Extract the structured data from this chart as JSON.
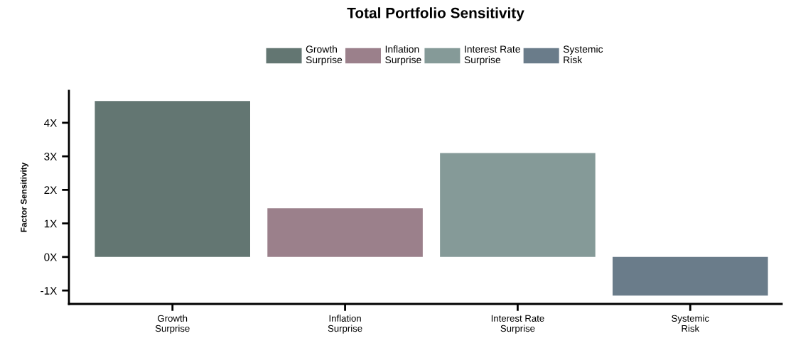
{
  "chart_data": {
    "type": "bar",
    "title": "Total Portfolio Sensitivity",
    "ylabel": "Factor Sensitivity",
    "categories": [
      "Growth\nSurprise",
      "Inflation\nSurprise",
      "Interest Rate\nSurprise",
      "Systemic\nRisk"
    ],
    "stacked": true,
    "series": [
      {
        "name": "Growth\nSurprise",
        "color": "#637672",
        "values": [
          4.65,
          null,
          null,
          null
        ]
      },
      {
        "name": "Inflation\nSurprise",
        "color": "#9b808b",
        "values": [
          null,
          1.45,
          null,
          null
        ]
      },
      {
        "name": "Interest Rate\nSurprise",
        "color": "#859a98",
        "values": [
          null,
          null,
          3.1,
          null
        ]
      },
      {
        "name": "Systemic\nRisk",
        "color": "#6a7c8a",
        "values": [
          null,
          null,
          null,
          -1.15
        ]
      }
    ],
    "ylim": [
      -1.4,
      4.95
    ],
    "yticks": [
      {
        "value": -1,
        "label": "-1X"
      },
      {
        "value": 0,
        "label": "0X"
      },
      {
        "value": 1,
        "label": "1X"
      },
      {
        "value": 2,
        "label": "2X"
      },
      {
        "value": 3,
        "label": "3X"
      },
      {
        "value": 4,
        "label": "4X"
      }
    ],
    "grid": false,
    "legend": "top"
  }
}
